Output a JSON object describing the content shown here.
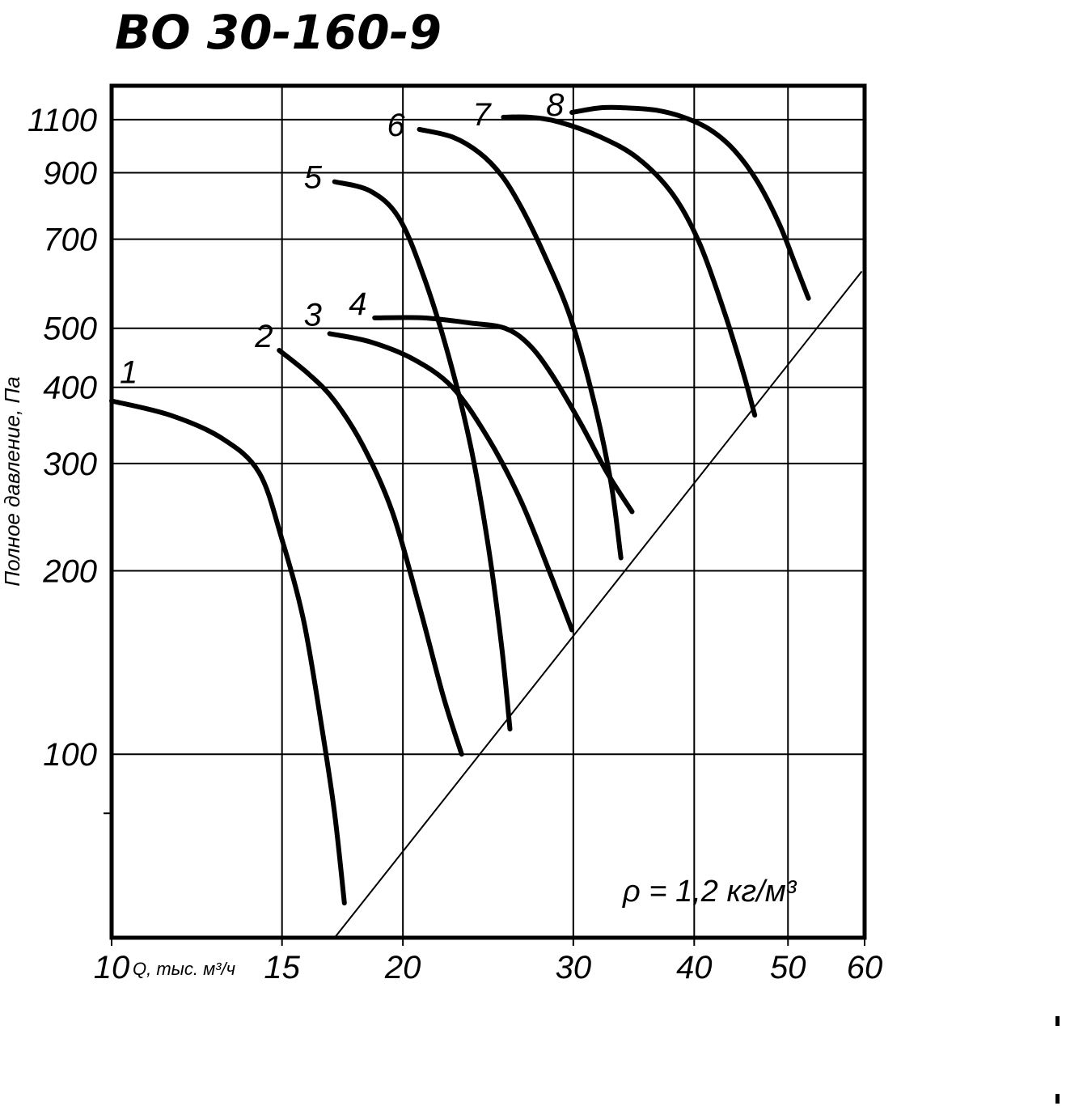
{
  "chart_data": {
    "type": "line",
    "title": "ВО 30-160-9",
    "ylabel": "Полное давление, Па",
    "xlabel": "Q, тыс. м³/ч",
    "x_scale": "log",
    "y_scale": "log",
    "xlim": [
      10,
      60
    ],
    "ylim": [
      50,
      1250
    ],
    "x_ticks": [
      10,
      15,
      20,
      30,
      40,
      50,
      60
    ],
    "x_tick_labels": [
      "10",
      "15",
      "20",
      "30",
      "40",
      "50",
      "60"
    ],
    "y_ticks": [
      100,
      200,
      300,
      400,
      500,
      700,
      900,
      1100
    ],
    "y_tick_labels": [
      "100",
      "200",
      "300",
      "400",
      "500",
      "700",
      "900",
      "1100"
    ],
    "y_minor_ticks": [
      80
    ],
    "annotation": "ρ = 1,2 кг/м³",
    "series": [
      {
        "name": "1",
        "x": [
          10,
          11.5,
          13.0,
          14.2,
          15.0,
          15.8,
          16.5,
          17.0,
          17.4
        ],
        "y": [
          380,
          360,
          330,
          290,
          225,
          165,
          110,
          80,
          57
        ]
      },
      {
        "name": "2",
        "x": [
          14.9,
          16.0,
          17.0,
          18.2,
          19.5,
          20.8,
          22.0,
          23.0
        ],
        "y": [
          460,
          420,
          380,
          320,
          250,
          175,
          125,
          100
        ]
      },
      {
        "name": "3",
        "x": [
          16.8,
          18.5,
          20.5,
          22.5,
          24.5,
          26.5,
          28.5,
          29.9
        ],
        "y": [
          490,
          475,
          445,
          400,
          330,
          260,
          195,
          160
        ]
      },
      {
        "name": "4",
        "x": [
          18.7,
          21.0,
          23.5,
          25.5,
          27.0,
          28.5,
          30.5,
          32.5,
          34.5
        ],
        "y": [
          520,
          520,
          510,
          500,
          470,
          420,
          350,
          290,
          250
        ]
      },
      {
        "name": "5",
        "x": [
          17.0,
          18.5,
          19.8,
          21.0,
          22.3,
          23.5,
          24.5,
          25.3,
          25.8
        ],
        "y": [
          870,
          840,
          760,
          610,
          450,
          320,
          220,
          150,
          110
        ]
      },
      {
        "name": "6",
        "x": [
          20.8,
          22.5,
          24.0,
          25.3,
          26.5,
          28.0,
          29.8,
          31.5,
          32.8,
          33.6
        ],
        "y": [
          1060,
          1030,
          970,
          890,
          790,
          660,
          520,
          380,
          280,
          210
        ]
      },
      {
        "name": "7",
        "x": [
          25.4,
          27.0,
          29.0,
          32.0,
          35.0,
          38.0,
          40.5,
          43.0,
          45.0,
          46.2
        ],
        "y": [
          1110,
          1110,
          1090,
          1030,
          950,
          830,
          690,
          530,
          420,
          360
        ]
      },
      {
        "name": "8",
        "x": [
          29.9,
          32.0,
          34.0,
          36.5,
          39.0,
          41.5,
          44.0,
          46.5,
          49.0,
          51.0,
          52.5
        ],
        "y": [
          1130,
          1150,
          1150,
          1140,
          1110,
          1060,
          980,
          870,
          740,
          630,
          560
        ]
      }
    ],
    "limit_line": {
      "x": [
        17.0,
        59.6
      ],
      "y": [
        50,
        620
      ]
    }
  }
}
